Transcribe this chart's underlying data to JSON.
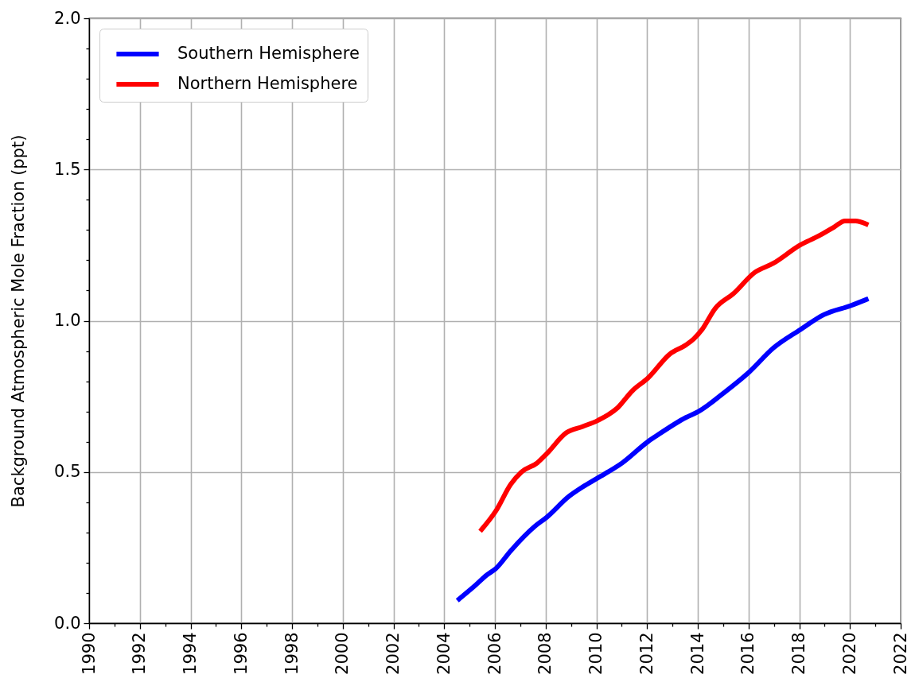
{
  "chart_data": {
    "type": "line",
    "ylabel": "Background Atmospheric Mole Fraction (ppt)",
    "xlim": [
      1990,
      2022
    ],
    "xticks": [
      1990,
      {
        "value": 1991,
        "label": null
      },
      1992,
      {
        "value": 1993,
        "label": null
      },
      1994,
      {
        "value": 1995,
        "label": null
      },
      1996,
      {
        "value": 1997,
        "label": null
      },
      1998,
      {
        "value": 1999,
        "label": null
      },
      2000,
      {
        "value": 2001,
        "label": null
      },
      2002,
      {
        "value": 2003,
        "label": null
      },
      2004,
      {
        "value": 2005,
        "label": null
      },
      2006,
      {
        "value": 2007,
        "label": null
      },
      2008,
      {
        "value": 2009,
        "label": null
      },
      2010,
      {
        "value": 2011,
        "label": null
      },
      2012,
      {
        "value": 2013,
        "label": null
      },
      2014,
      {
        "value": 2015,
        "label": null
      },
      2016,
      {
        "value": 2017,
        "label": null
      },
      2018,
      {
        "value": 2019,
        "label": null
      },
      2020,
      {
        "value": 2021,
        "label": null
      },
      2022
    ],
    "ylim": [
      0,
      2
    ],
    "yticks": [
      {
        "value": 0,
        "label": "0.0"
      },
      {
        "value": 0.1,
        "label": null
      },
      {
        "value": 0.2,
        "label": null
      },
      {
        "value": 0.3,
        "label": null
      },
      {
        "value": 0.4,
        "label": null
      },
      {
        "value": 0.5,
        "label": "0.5"
      },
      {
        "value": 0.6,
        "label": null
      },
      {
        "value": 0.7,
        "label": null
      },
      {
        "value": 0.8,
        "label": null
      },
      {
        "value": 0.9,
        "label": null
      },
      {
        "value": 1,
        "label": "1.0"
      },
      {
        "value": 1.1,
        "label": null
      },
      {
        "value": 1.2,
        "label": null
      },
      {
        "value": 1.3,
        "label": null
      },
      {
        "value": 1.4,
        "label": null
      },
      {
        "value": 1.5,
        "label": "1.5"
      },
      {
        "value": 1.6,
        "label": null
      },
      {
        "value": 1.7,
        "label": null
      },
      {
        "value": 1.8,
        "label": null
      },
      {
        "value": 1.9,
        "label": null
      },
      {
        "value": 2,
        "label": "2.0"
      }
    ],
    "grid": true,
    "legend": "top left",
    "line_style": "solid",
    "series": [
      {
        "name": "Southern Hemisphere",
        "color": "#0000ff",
        "x": [
          2004.59,
          2005.16,
          2005.69,
          2006.03,
          2006.63,
          2007.57,
          2008.04,
          2008.93,
          2009.45,
          2010.05,
          2011.02,
          2012.03,
          2012.38,
          2013.53,
          2014.03,
          2015.0,
          2016.02,
          2016.98,
          2018.03,
          2018.97,
          2020.03,
          2020.64
        ],
        "values": [
          0.08,
          0.12,
          0.16,
          0.18,
          0.24,
          0.32,
          0.35,
          0.42,
          0.45,
          0.48,
          0.53,
          0.6,
          0.62,
          0.68,
          0.7,
          0.76,
          0.83,
          0.91,
          0.97,
          1.02,
          1.05,
          1.07
        ]
      },
      {
        "name": "Northern Hemisphere",
        "color": "#ff0000",
        "x": [
          2005.48,
          2006.03,
          2006.63,
          2007.05,
          2007.67,
          2008.04,
          2008.82,
          2009.45,
          2010.05,
          2010.81,
          2011.44,
          2012.03,
          2012.9,
          2013.53,
          2013.84,
          2014.16,
          2014.68,
          2015.41,
          2016.25,
          2016.98,
          2018.03,
          2018.76,
          2019.38,
          2019.8,
          2020.22,
          2020.64
        ],
        "values": [
          0.31,
          0.37,
          0.46,
          0.5,
          0.53,
          0.56,
          0.63,
          0.65,
          0.67,
          0.71,
          0.77,
          0.81,
          0.89,
          0.92,
          0.94,
          0.97,
          1.04,
          1.09,
          1.16,
          1.19,
          1.25,
          1.28,
          1.31,
          1.33,
          1.33,
          1.32
        ]
      }
    ]
  }
}
